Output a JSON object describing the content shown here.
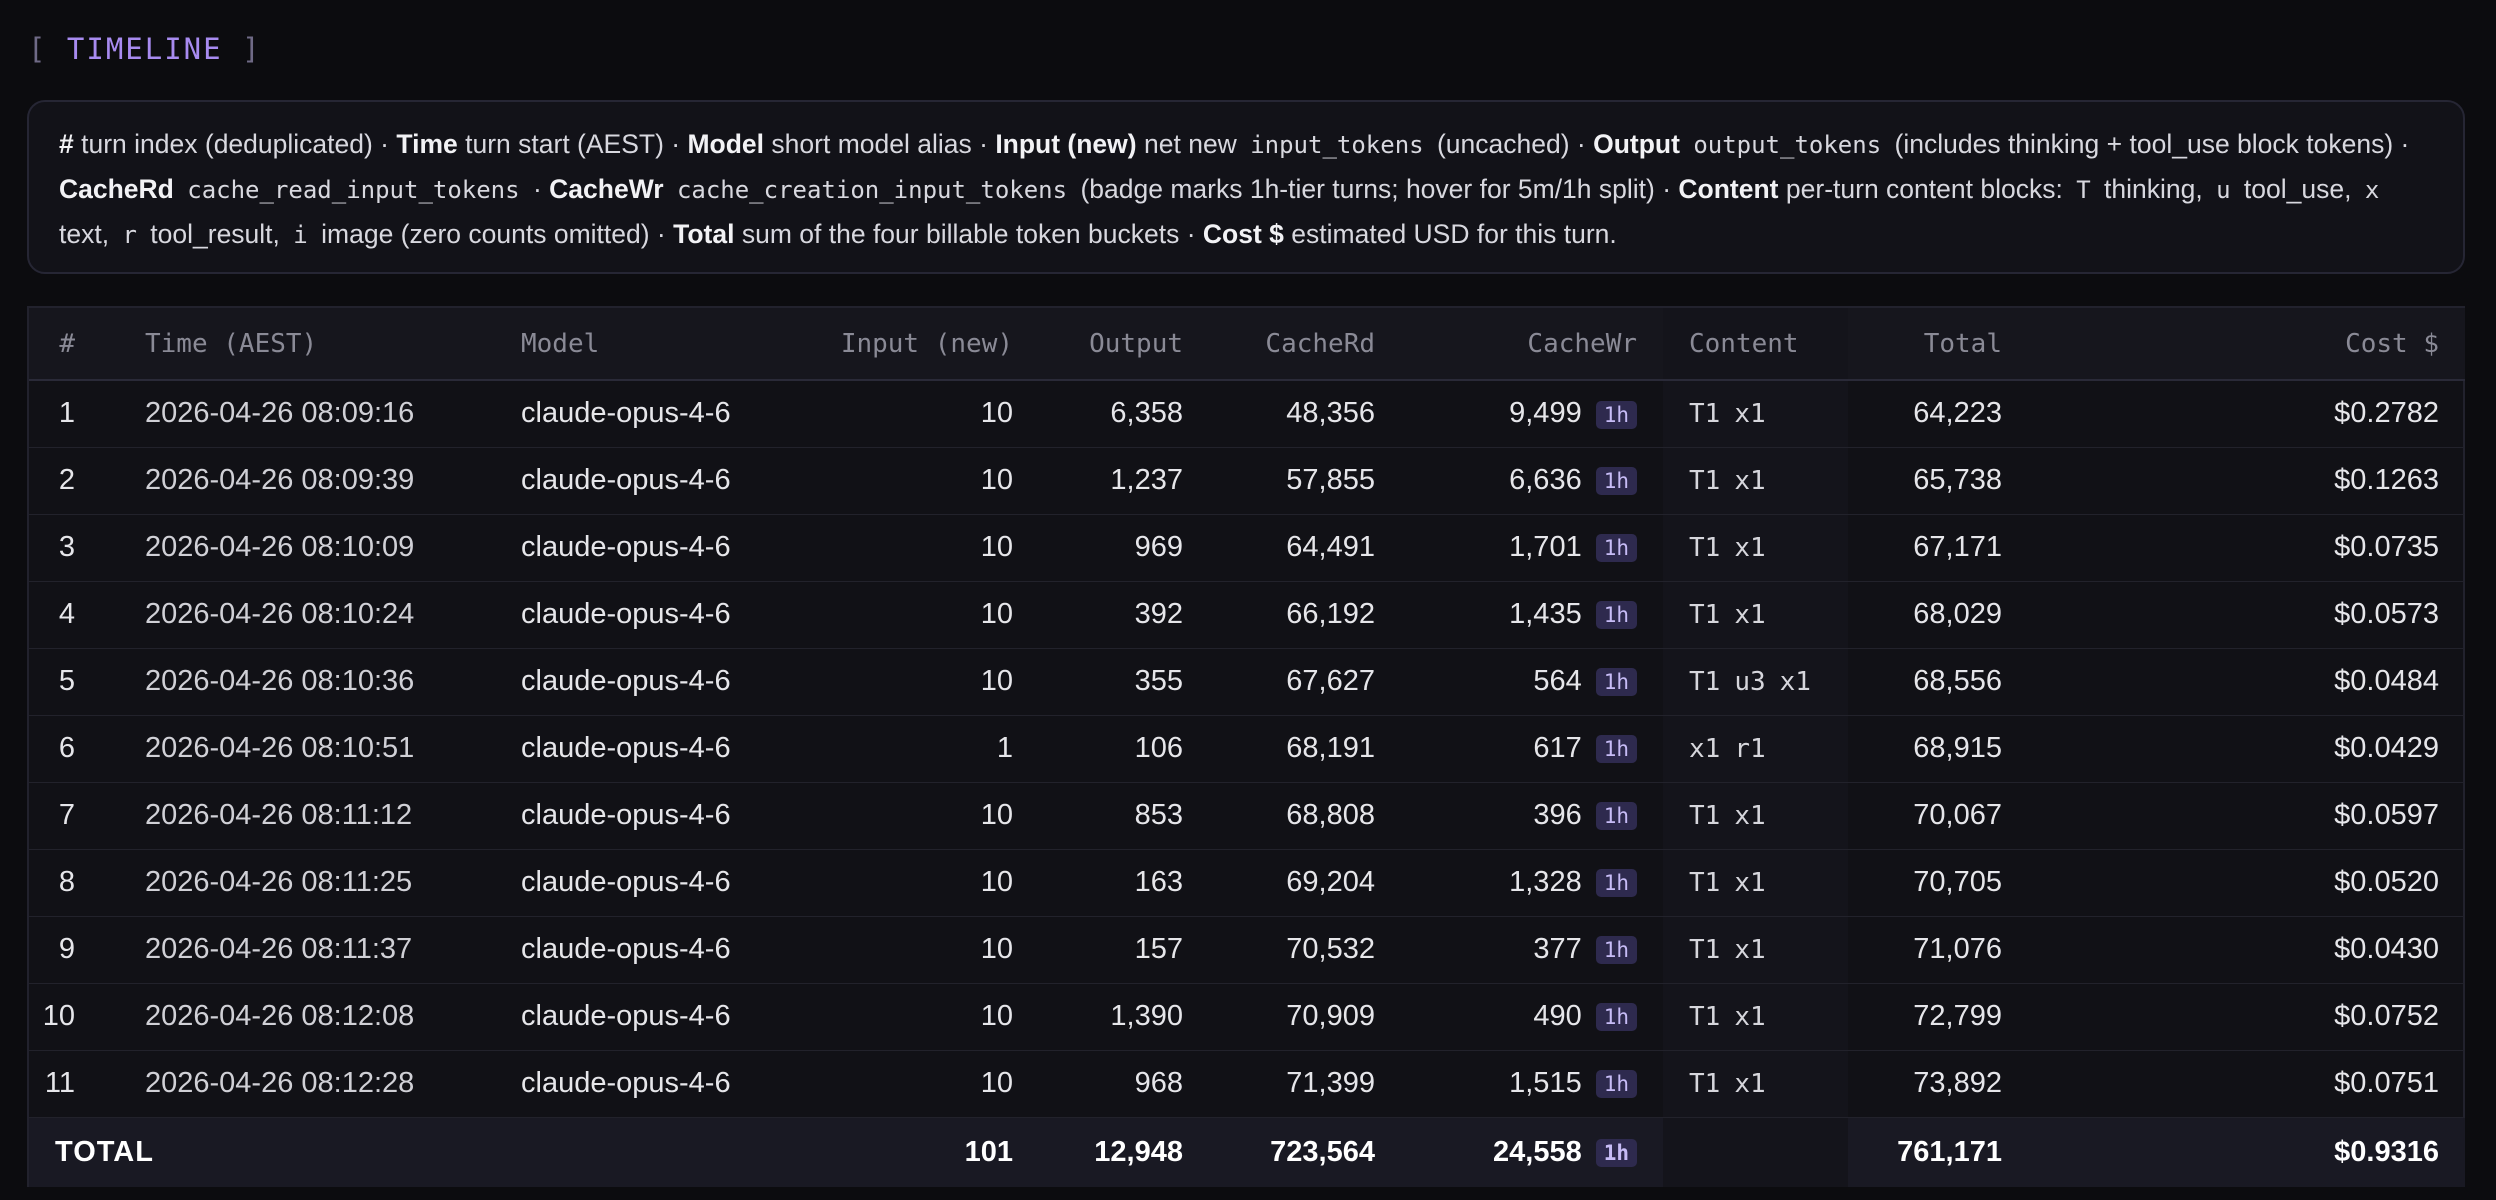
{
  "section_title": "TIMELINE",
  "legend": {
    "turn_idx_label": "#",
    "turn_idx_desc": "turn index (deduplicated) ·",
    "time_label": "Time",
    "time_desc": "turn start (AEST) ·",
    "model_label": "Model",
    "model_desc": "short model alias ·",
    "input_label": "Input (new)",
    "input_desc_pre": "net new",
    "input_code": "input_tokens",
    "input_desc_post": "(uncached) ·",
    "output_label": "Output",
    "output_code": "output_tokens",
    "output_desc": "(includes thinking + tool_use block tokens) ·",
    "cacherd_label": "CacheRd",
    "cacherd_code": "cache_read_input_tokens",
    "cacherd_desc": "·",
    "cachewr_label": "CacheWr",
    "cachewr_code": "cache_creation_input_tokens",
    "cachewr_desc": "(badge marks 1h-tier turns; hover for 5m/1h split) ·",
    "content_label": "Content",
    "content_desc": "per-turn content blocks:",
    "content_t_code": "T",
    "content_t_desc": "thinking,",
    "content_u_code": "u",
    "content_u_desc": "tool_use,",
    "content_x_code": "x",
    "content_x_desc": "text,",
    "content_r_code": "r",
    "content_r_desc": "tool_result,",
    "content_i_code": "i",
    "content_i_desc": "image (zero counts omitted) ·",
    "total_label": "Total",
    "total_desc": "sum of the four billable token buckets ·",
    "cost_label": "Cost $",
    "cost_desc": "estimated USD for this turn."
  },
  "table": {
    "columns": {
      "idx": "#",
      "time": "Time (AEST)",
      "model": "Model",
      "input": "Input (new)",
      "output": "Output",
      "cacherd": "CacheRd",
      "cachewr": "CacheWr",
      "content": "Content",
      "total": "Total",
      "cost": "Cost $"
    },
    "badge_label": "1h",
    "rows": [
      {
        "idx": "1",
        "time": "2026-04-26 08:09:16",
        "model": "claude-opus-4-6",
        "input": "10",
        "output": "6,358",
        "cacherd": "48,356",
        "cachewr": "9,499",
        "content": [
          "T1",
          "x1"
        ],
        "total": "64,223",
        "cost": "$0.2782"
      },
      {
        "idx": "2",
        "time": "2026-04-26 08:09:39",
        "model": "claude-opus-4-6",
        "input": "10",
        "output": "1,237",
        "cacherd": "57,855",
        "cachewr": "6,636",
        "content": [
          "T1",
          "x1"
        ],
        "total": "65,738",
        "cost": "$0.1263"
      },
      {
        "idx": "3",
        "time": "2026-04-26 08:10:09",
        "model": "claude-opus-4-6",
        "input": "10",
        "output": "969",
        "cacherd": "64,491",
        "cachewr": "1,701",
        "content": [
          "T1",
          "x1"
        ],
        "total": "67,171",
        "cost": "$0.0735"
      },
      {
        "idx": "4",
        "time": "2026-04-26 08:10:24",
        "model": "claude-opus-4-6",
        "input": "10",
        "output": "392",
        "cacherd": "66,192",
        "cachewr": "1,435",
        "content": [
          "T1",
          "x1"
        ],
        "total": "68,029",
        "cost": "$0.0573"
      },
      {
        "idx": "5",
        "time": "2026-04-26 08:10:36",
        "model": "claude-opus-4-6",
        "input": "10",
        "output": "355",
        "cacherd": "67,627",
        "cachewr": "564",
        "content": [
          "T1",
          "u3",
          "x1"
        ],
        "total": "68,556",
        "cost": "$0.0484"
      },
      {
        "idx": "6",
        "time": "2026-04-26 08:10:51",
        "model": "claude-opus-4-6",
        "input": "1",
        "output": "106",
        "cacherd": "68,191",
        "cachewr": "617",
        "content": [
          "x1",
          "r1"
        ],
        "total": "68,915",
        "cost": "$0.0429"
      },
      {
        "idx": "7",
        "time": "2026-04-26 08:11:12",
        "model": "claude-opus-4-6",
        "input": "10",
        "output": "853",
        "cacherd": "68,808",
        "cachewr": "396",
        "content": [
          "T1",
          "x1"
        ],
        "total": "70,067",
        "cost": "$0.0597"
      },
      {
        "idx": "8",
        "time": "2026-04-26 08:11:25",
        "model": "claude-opus-4-6",
        "input": "10",
        "output": "163",
        "cacherd": "69,204",
        "cachewr": "1,328",
        "content": [
          "T1",
          "x1"
        ],
        "total": "70,705",
        "cost": "$0.0520"
      },
      {
        "idx": "9",
        "time": "2026-04-26 08:11:37",
        "model": "claude-opus-4-6",
        "input": "10",
        "output": "157",
        "cacherd": "70,532",
        "cachewr": "377",
        "content": [
          "T1",
          "x1"
        ],
        "total": "71,076",
        "cost": "$0.0430"
      },
      {
        "idx": "10",
        "time": "2026-04-26 08:12:08",
        "model": "claude-opus-4-6",
        "input": "10",
        "output": "1,390",
        "cacherd": "70,909",
        "cachewr": "490",
        "content": [
          "T1",
          "x1"
        ],
        "total": "72,799",
        "cost": "$0.0752"
      },
      {
        "idx": "11",
        "time": "2026-04-26 08:12:28",
        "model": "claude-opus-4-6",
        "input": "10",
        "output": "968",
        "cacherd": "71,399",
        "cachewr": "1,515",
        "content": [
          "T1",
          "x1"
        ],
        "total": "73,892",
        "cost": "$0.0751"
      }
    ],
    "totals": {
      "label": "TOTAL",
      "input": "101",
      "output": "12,948",
      "cacherd": "723,564",
      "cachewr": "24,558",
      "total": "761,171",
      "cost": "$0.9316"
    }
  }
}
